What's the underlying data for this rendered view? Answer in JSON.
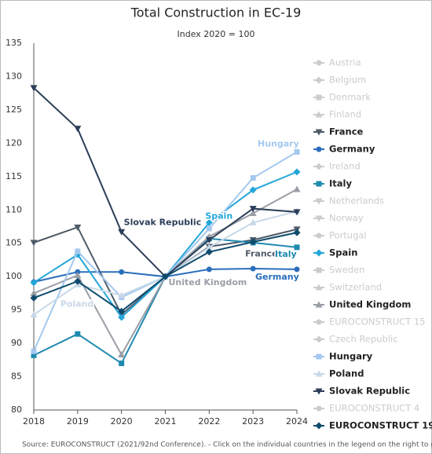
{
  "chart_data": {
    "type": "line",
    "title": "Total Construction in EC-19",
    "subtitle": "Index 2020 = 100",
    "source": "Source: EUROCONSTRUCT (2021/92nd Conference). - Click on the individual countries in the legend on the right to get their o",
    "x": [
      2018,
      2019,
      2020,
      2021,
      2022,
      2023,
      2024
    ],
    "xlim": [
      2018,
      2024
    ],
    "xticks": [
      2018,
      2019,
      2020,
      2021,
      2022,
      2023,
      2024
    ],
    "ylim": [
      80,
      135
    ],
    "yticks": [
      80,
      85,
      90,
      95,
      100,
      105,
      110,
      115,
      120,
      125,
      130,
      135
    ],
    "legend": "right",
    "series": [
      {
        "name": "Austria",
        "color": "#cccccc",
        "marker": "circle",
        "visible": false,
        "values": [
          null,
          null,
          null,
          null,
          null,
          null,
          null
        ]
      },
      {
        "name": "Belgium",
        "color": "#cccccc",
        "marker": "diamond",
        "visible": false,
        "values": [
          null,
          null,
          null,
          null,
          null,
          null,
          null
        ]
      },
      {
        "name": "Denmark",
        "color": "#cccccc",
        "marker": "square",
        "visible": false,
        "values": [
          null,
          null,
          null,
          null,
          null,
          null,
          null
        ]
      },
      {
        "name": "Finland",
        "color": "#cccccc",
        "marker": "triangle",
        "visible": false,
        "values": [
          null,
          null,
          null,
          null,
          null,
          null,
          null
        ]
      },
      {
        "name": "France",
        "color": "#4d5a68",
        "marker": "triangle-down",
        "visible": true,
        "values": [
          105.1,
          107.4,
          94.3,
          100,
          104.5,
          105.5,
          107.1
        ]
      },
      {
        "name": "Germany",
        "color": "#2a6ebb",
        "marker": "circle",
        "visible": true,
        "values": [
          99.2,
          100.7,
          100.7,
          100,
          101.1,
          101.2,
          101.1
        ]
      },
      {
        "name": "Ireland",
        "color": "#cccccc",
        "marker": "diamond",
        "visible": false,
        "values": [
          null,
          null,
          null,
          null,
          null,
          null,
          null
        ]
      },
      {
        "name": "Italy",
        "color": "#1f8ab0",
        "marker": "square",
        "visible": true,
        "values": [
          88.2,
          91.4,
          87,
          100,
          105.7,
          105.1,
          104.4
        ]
      },
      {
        "name": "Netherlands",
        "color": "#cccccc",
        "marker": "triangle-down",
        "visible": false,
        "values": [
          null,
          null,
          null,
          null,
          null,
          null,
          null
        ]
      },
      {
        "name": "Norway",
        "color": "#cccccc",
        "marker": "triangle-down",
        "visible": false,
        "values": [
          null,
          null,
          null,
          null,
          null,
          null,
          null
        ]
      },
      {
        "name": "Portugal",
        "color": "#cccccc",
        "marker": "circle",
        "visible": false,
        "values": [
          null,
          null,
          null,
          null,
          null,
          null,
          null
        ]
      },
      {
        "name": "Spain",
        "color": "#25a6d9",
        "marker": "diamond",
        "visible": true,
        "values": [
          99.1,
          103.3,
          93.9,
          100,
          108.1,
          113,
          115.7
        ]
      },
      {
        "name": "Sweden",
        "color": "#cccccc",
        "marker": "square",
        "visible": false,
        "values": [
          null,
          null,
          null,
          null,
          null,
          null,
          null
        ]
      },
      {
        "name": "Switzerland",
        "color": "#cccccc",
        "marker": "triangle",
        "visible": false,
        "values": [
          null,
          null,
          null,
          null,
          null,
          null,
          null
        ]
      },
      {
        "name": "United Kingdom",
        "color": "#9a9ea6",
        "marker": "triangle",
        "visible": true,
        "values": [
          97.5,
          100.2,
          88.3,
          100,
          106,
          109.5,
          113.1
        ]
      },
      {
        "name": "EUROCONSTRUCT 15",
        "color": "#cccccc",
        "marker": "circle",
        "visible": false,
        "values": [
          null,
          null,
          null,
          null,
          null,
          null,
          null
        ]
      },
      {
        "name": "Czech Republic",
        "color": "#cccccc",
        "marker": "diamond",
        "visible": false,
        "values": [
          null,
          null,
          null,
          null,
          null,
          null,
          null
        ]
      },
      {
        "name": "Hungary",
        "color": "#a4c8ef",
        "marker": "square",
        "visible": true,
        "values": [
          88.8,
          103.8,
          96.9,
          100,
          107.2,
          114.8,
          118.7
        ]
      },
      {
        "name": "Poland",
        "color": "#c8d8e8",
        "marker": "triangle",
        "visible": true,
        "values": [
          94.3,
          98.8,
          97.2,
          100,
          104.4,
          108.1,
          109.8
        ]
      },
      {
        "name": "Slovak Republic",
        "color": "#2b3e58",
        "marker": "triangle-down",
        "visible": true,
        "values": [
          128.3,
          122.2,
          106.7,
          100,
          105.5,
          110.2,
          109.7
        ]
      },
      {
        "name": "EUROCONSTRUCT 4",
        "color": "#cccccc",
        "marker": "circle",
        "visible": false,
        "values": [
          null,
          null,
          null,
          null,
          null,
          null,
          null
        ]
      },
      {
        "name": "EUROCONSTRUCT 19",
        "color": "#0e4b6c",
        "marker": "diamond",
        "visible": true,
        "values": [
          96.8,
          99.3,
          94.8,
          100,
          103.7,
          105.2,
          106.6
        ]
      }
    ]
  }
}
